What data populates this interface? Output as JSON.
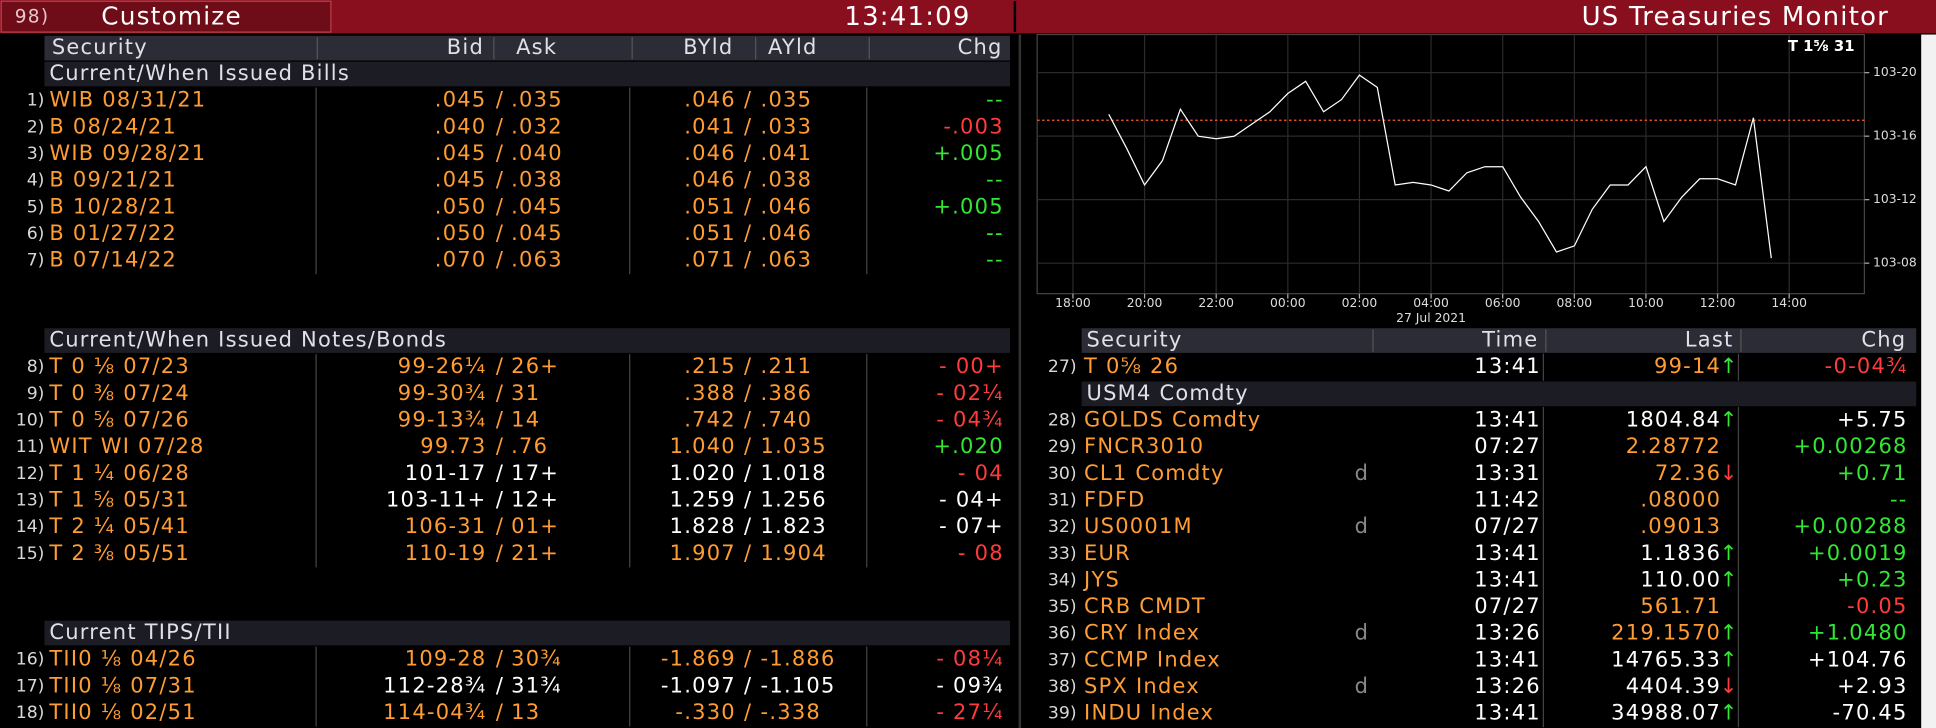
{
  "header": {
    "menu_number": "98)",
    "title": "Customize",
    "time": "13:41:09",
    "monitor_title": "US Treasuries Monitor"
  },
  "left_table": {
    "columns": [
      "Security",
      "Bid",
      "Ask",
      "BYld",
      "AYld",
      "Chg"
    ],
    "separator": "/",
    "sections": [
      {
        "title": "Current/When Issued Bills",
        "rows": [
          {
            "num": "1)",
            "security": "WIB 08/31/21",
            "bid": ".045",
            "ask": ".035",
            "byld": ".046",
            "ayld": ".035",
            "chg": "--",
            "price_color": "#ff9c33",
            "yield_color": "#ff9c33",
            "chg_color": "#33e633"
          },
          {
            "num": "2)",
            "security": "B 08/24/21",
            "bid": ".040",
            "ask": ".032",
            "byld": ".041",
            "ayld": ".033",
            "chg": "-.003",
            "price_color": "#ff9c33",
            "yield_color": "#ff9c33",
            "chg_color": "#ff3b3b"
          },
          {
            "num": "3)",
            "security": "WIB 09/28/21",
            "bid": ".045",
            "ask": ".040",
            "byld": ".046",
            "ayld": ".041",
            "chg": "+.005",
            "price_color": "#ff9c33",
            "yield_color": "#ff9c33",
            "chg_color": "#33e633"
          },
          {
            "num": "4)",
            "security": "B 09/21/21",
            "bid": ".045",
            "ask": ".038",
            "byld": ".046",
            "ayld": ".038",
            "chg": "--",
            "price_color": "#ff9c33",
            "yield_color": "#ff9c33",
            "chg_color": "#33e633"
          },
          {
            "num": "5)",
            "security": "B 10/28/21",
            "bid": ".050",
            "ask": ".045",
            "byld": ".051",
            "ayld": ".046",
            "chg": "+.005",
            "price_color": "#ff9c33",
            "yield_color": "#ff9c33",
            "chg_color": "#33e633"
          },
          {
            "num": "6)",
            "security": "B 01/27/22",
            "bid": ".050",
            "ask": ".045",
            "byld": ".051",
            "ayld": ".046",
            "chg": "--",
            "price_color": "#ff9c33",
            "yield_color": "#ff9c33",
            "chg_color": "#33e633"
          },
          {
            "num": "7)",
            "security": "B 07/14/22",
            "bid": ".070",
            "ask": ".063",
            "byld": ".071",
            "ayld": ".063",
            "chg": "--",
            "price_color": "#ff9c33",
            "yield_color": "#ff9c33",
            "chg_color": "#33e633"
          }
        ]
      },
      {
        "title": "Current/When Issued Notes/Bonds",
        "rows": [
          {
            "num": "8)",
            "security": "T 0 ⅛ 07/23",
            "bid": "99-26¼",
            "ask": "26+",
            "byld": ".215",
            "ayld": ".211",
            "chg": "- 00+",
            "price_color": "#ff9c33",
            "yield_color": "#ff9c33",
            "chg_color": "#ff3b3b"
          },
          {
            "num": "9)",
            "security": "T 0 ⅜ 07/24",
            "bid": "99-30¾",
            "ask": "31",
            "byld": ".388",
            "ayld": ".386",
            "chg": "- 02¼",
            "price_color": "#ff9c33",
            "yield_color": "#ff9c33",
            "chg_color": "#ff3b3b"
          },
          {
            "num": "10)",
            "security": "T 0 ⅝ 07/26",
            "bid": "99-13¾",
            "ask": "14",
            "byld": ".742",
            "ayld": ".740",
            "chg": "- 04¾",
            "price_color": "#ff9c33",
            "yield_color": "#ff9c33",
            "chg_color": "#ff3b3b"
          },
          {
            "num": "11)",
            "security": "WIT WI 07/28",
            "bid": "99.73",
            "ask": ".76",
            "byld": "1.040",
            "ayld": "1.035",
            "chg": "+.020",
            "price_color": "#ff9c33",
            "yield_color": "#ff9c33",
            "chg_color": "#33e633"
          },
          {
            "num": "12)",
            "security": "T 1 ¼ 06/28",
            "bid": "101-17",
            "ask": "17+",
            "byld": "1.020",
            "ayld": "1.018",
            "chg": "- 04",
            "price_color": "#ffffff",
            "yield_color": "#ffffff",
            "chg_color": "#ff3b3b"
          },
          {
            "num": "13)",
            "security": "T 1 ⅝ 05/31",
            "bid": "103-11+",
            "ask": "12+",
            "byld": "1.259",
            "ayld": "1.256",
            "chg": "- 04+",
            "price_color": "#ffffff",
            "yield_color": "#ffffff",
            "chg_color": "#ffffff"
          },
          {
            "num": "14)",
            "security": "T 2 ¼ 05/41",
            "bid": "106-31",
            "ask": "01+",
            "byld": "1.828",
            "ayld": "1.823",
            "chg": "- 07+",
            "price_color": "#ff9c33",
            "yield_color": "#ffffff",
            "chg_color": "#ffffff"
          },
          {
            "num": "15)",
            "security": "T 2 ⅜ 05/51",
            "bid": "110-19",
            "ask": "21+",
            "byld": "1.907",
            "ayld": "1.904",
            "chg": "- 08",
            "price_color": "#ff9c33",
            "yield_color": "#ff9c33",
            "chg_color": "#ff3b3b"
          }
        ]
      },
      {
        "title": "Current TIPS/TII",
        "rows": [
          {
            "num": "16)",
            "security": "TII0 ⅛ 04/26",
            "bid": "109-28",
            "ask": "30¾",
            "byld": "-1.869",
            "ayld": "-1.886",
            "chg": "- 08¼",
            "price_color": "#ff9c33",
            "yield_color": "#ff9c33",
            "chg_color": "#ff3b3b"
          },
          {
            "num": "17)",
            "security": "TII0 ⅛ 07/31",
            "bid": "112-28¾",
            "ask": "31¾",
            "byld": "-1.097",
            "ayld": "-1.105",
            "chg": "- 09¾",
            "price_color": "#ffffff",
            "yield_color": "#ffffff",
            "chg_color": "#ffffff"
          },
          {
            "num": "18)",
            "security": "TII0 ⅛ 02/51",
            "bid": "114-04¾",
            "ask": "13",
            "byld": "-.330",
            "ayld": "-.338",
            "chg": "- 27¼",
            "price_color": "#ff9c33",
            "yield_color": "#ff9c33",
            "chg_color": "#ff3b3b"
          }
        ]
      }
    ]
  },
  "right_table": {
    "columns": [
      "Security",
      "Time",
      "Last",
      "Chg"
    ],
    "groups": [
      {
        "rows": [
          {
            "num": "27)",
            "security": "T 0⅝ 26",
            "time": "13:41",
            "last": "99-14",
            "arrow": "↑",
            "arrow_color": "#33e633",
            "chg": "-0-04¾",
            "last_color": "#ff9c33",
            "chg_color": "#ff3b3b"
          }
        ]
      },
      {
        "title": "USM4 Comdty",
        "rows": [
          {
            "num": "28)",
            "security": "GOLDS Comdty",
            "time": "13:41",
            "last": "1804.84",
            "arrow": "↑",
            "arrow_color": "#33e633",
            "chg": "+5.75",
            "last_color": "#ffffff",
            "chg_color": "#ffffff"
          },
          {
            "num": "29)",
            "security": "FNCR3010",
            "time": "07:27",
            "last": "2.28772",
            "chg": "+0.00268",
            "last_color": "#ff9c33",
            "chg_color": "#33e633"
          },
          {
            "num": "30)",
            "security": "CL1 Comdty",
            "flag": "d",
            "time": "13:31",
            "last": "72.36",
            "arrow": "↓",
            "arrow_color": "#ff3b3b",
            "chg": "+0.71",
            "last_color": "#ff9c33",
            "chg_color": "#33e633"
          },
          {
            "num": "31)",
            "security": "FDFD",
            "time": "11:42",
            "last": ".08000",
            "chg": "--",
            "last_color": "#ff9c33",
            "chg_color": "#33e633"
          },
          {
            "num": "32)",
            "security": "US0001M",
            "flag": "d",
            "time": "07/27",
            "last": ".09013",
            "chg": "+0.00288",
            "last_color": "#ff9c33",
            "chg_color": "#33e633"
          },
          {
            "num": "33)",
            "security": "EUR",
            "time": "13:41",
            "last": "1.1836",
            "arrow": "↑",
            "arrow_color": "#33e633",
            "chg": "+0.0019",
            "last_color": "#ffffff",
            "chg_color": "#33e633"
          },
          {
            "num": "34)",
            "security": "JYS",
            "time": "13:41",
            "last": "110.00",
            "arrow": "↑",
            "arrow_color": "#33e633",
            "chg": "+0.23",
            "last_color": "#ffffff",
            "chg_color": "#33e633"
          },
          {
            "num": "35)",
            "security": "CRB CMDT",
            "time": "07/27",
            "last": "561.71",
            "chg": "-0.05",
            "last_color": "#ff9c33",
            "chg_color": "#ff3b3b"
          },
          {
            "num": "36)",
            "security": "CRY Index",
            "flag": "d",
            "time": "13:26",
            "last": "219.1570",
            "arrow": "↑",
            "arrow_color": "#33e633",
            "chg": "+1.0480",
            "last_color": "#ff9c33",
            "chg_color": "#33e633"
          },
          {
            "num": "37)",
            "security": "CCMP Index",
            "time": "13:41",
            "last": "14765.33",
            "arrow": "↑",
            "arrow_color": "#33e633",
            "chg": "+104.76",
            "last_color": "#ffffff",
            "chg_color": "#ffffff"
          },
          {
            "num": "38)",
            "security": "SPX Index",
            "flag": "d",
            "time": "13:26",
            "last": "4404.39",
            "arrow": "↓",
            "arrow_color": "#ff3b3b",
            "chg": "+2.93",
            "last_color": "#ffffff",
            "chg_color": "#ffffff"
          },
          {
            "num": "39)",
            "security": "INDU Index",
            "time": "13:41",
            "last": "34988.07",
            "arrow": "↑",
            "arrow_color": "#33e633",
            "chg": "-70.45",
            "last_color": "#ffffff",
            "chg_color": "#ffffff"
          }
        ]
      }
    ]
  },
  "chart_data": {
    "type": "line",
    "label": "T 1⅝ 31",
    "date_label": "27 Jul 2021",
    "x": [
      "19:00",
      "19:30",
      "20:00",
      "20:30",
      "21:00",
      "21:30",
      "22:00",
      "22:30",
      "23:00",
      "23:30",
      "00:00",
      "00:30",
      "01:00",
      "01:30",
      "02:00",
      "02:30",
      "03:00",
      "03:30",
      "04:00",
      "04:30",
      "05:00",
      "05:30",
      "06:00",
      "06:30",
      "07:00",
      "07:30",
      "08:00",
      "08:30",
      "09:00",
      "09:30",
      "10:00",
      "10:30",
      "11:00",
      "11:30",
      "12:00",
      "12:30",
      "13:00",
      "13:30"
    ],
    "series": [
      {
        "color": "#ffffff",
        "values": [
          103.543,
          103.476,
          103.404,
          103.452,
          103.553,
          103.5,
          103.495,
          103.5,
          103.524,
          103.548,
          103.584,
          103.608,
          103.548,
          103.572,
          103.62,
          103.596,
          103.404,
          103.409,
          103.404,
          103.392,
          103.428,
          103.44,
          103.44,
          103.38,
          103.332,
          103.272,
          103.284,
          103.356,
          103.404,
          103.404,
          103.44,
          103.332,
          103.38,
          103.416,
          103.416,
          103.404,
          103.536,
          103.26
        ]
      }
    ],
    "reference_value": 103.53125,
    "reference_color": "#ff5a2a",
    "xlim": [
      "17:00",
      "16:06"
    ],
    "xticks": [
      "18:00",
      "20:00",
      "22:00",
      "00:00",
      "02:00",
      "04:00",
      "06:00",
      "08:00",
      "10:00",
      "12:00",
      "14:00"
    ],
    "ylim": [
      103.19,
      103.7
    ],
    "yticks": [
      {
        "value": 103.25,
        "label": "103-08"
      },
      {
        "value": 103.375,
        "label": "103-12"
      },
      {
        "value": 103.5,
        "label": "103-16"
      },
      {
        "value": 103.625,
        "label": "103-20"
      }
    ],
    "grid": true
  }
}
